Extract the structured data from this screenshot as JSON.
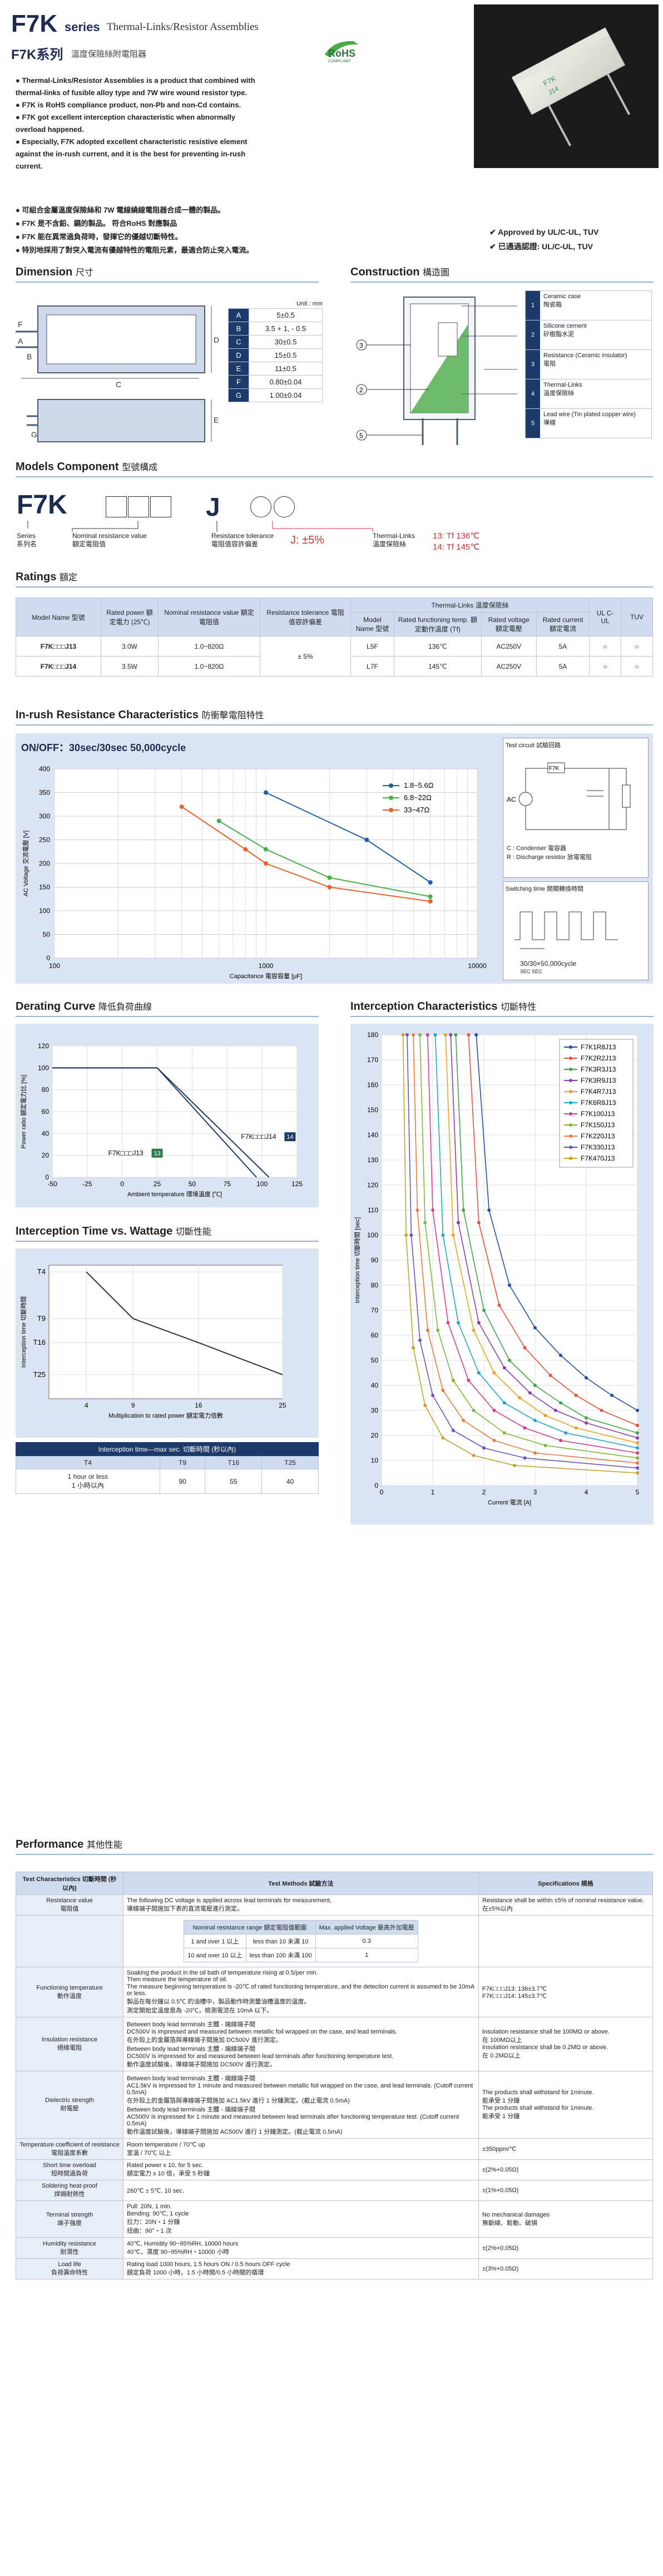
{
  "header": {
    "model": "F7K",
    "series_word": "series",
    "series_name": "Thermal-Links/Resistor Assemblies",
    "zh_title": "F7K系列",
    "zh_subtitle": "溫度保險絲附電阻器",
    "rohs": "RoHS",
    "rohs_sub": "COMPLIANT"
  },
  "intro": {
    "en_bullets": [
      "Thermal-Links/Resistor Assemblies is a product that combined with thermal-links of fusible alloy type and 7W wire wound resistor type.",
      "F7K is RoHS compliance product, non-Pb and non-Cd contains.",
      "F7K got excellent interception characteristic when abnormally overload happened.",
      "Especially, F7K adopted excellent characteristic resistive element against the in-rush current, and it is the best for preventing in-rush current."
    ],
    "zh_bullets": [
      "可組合金屬溫度保險絲和 7W 電線繞線電阻器合成一體的製品。",
      "F7K 是不含鉛、鎘的製品。 符合RoHS 對應製品",
      "F7K 能在異常過負荷時，發揮它的優越切斷特性。",
      "特別地採用了對突入電流有優越特性的電阻元素，最適合防止突入電流。"
    ],
    "approvals": [
      "Approved by UL/C-UL, TUV",
      "已通過認證: UL/C-UL, TUV"
    ]
  },
  "dimension": {
    "title": "Dimension",
    "title_zh": "尺寸",
    "unit": "Unit : mm",
    "rows": [
      {
        "k": "A",
        "v": "5±0.5"
      },
      {
        "k": "B",
        "v": "3.5 + 1, - 0.5"
      },
      {
        "k": "C",
        "v": "30±0.5"
      },
      {
        "k": "D",
        "v": "15±0.5"
      },
      {
        "k": "E",
        "v": "11±0.5"
      },
      {
        "k": "F",
        "v": "0.80±0.04"
      },
      {
        "k": "G",
        "v": "1.00±0.04"
      }
    ],
    "letters": [
      "A",
      "B",
      "C",
      "D",
      "E",
      "F",
      "G"
    ]
  },
  "construction": {
    "title": "Construction",
    "title_zh": "構造圖",
    "rows": [
      {
        "n": "1",
        "en": "Ceramic case",
        "zh": "陶瓷箱"
      },
      {
        "n": "2",
        "en": "Silicone cement",
        "zh": "矽樹脂水泥"
      },
      {
        "n": "3",
        "en": "Resistance (Ceramic insulator)",
        "zh": "電阻"
      },
      {
        "n": "4",
        "en": "Thermal-Links",
        "zh": "溫度保險絲"
      },
      {
        "n": "5",
        "en": "Lead wire (Tin plated copper wire)",
        "zh": "導線"
      }
    ]
  },
  "models": {
    "title": "Models Component",
    "title_zh": "型號構成",
    "prefix": "F7K",
    "letter": "J",
    "series_label": "Series",
    "series_zh": "系列名",
    "nominal_label": "Nominal resistance value",
    "nominal_zh": "額定電阻值",
    "tol_label": "Resistance tolerance",
    "tol_zh": "電阻值容許偏差",
    "tol_value": "J: ±5%",
    "tl_label": "Thermal-Links",
    "tl_zh": "溫度保險絲",
    "tl_13": "13: Tf  136℃",
    "tl_14": "14: Tf  145℃"
  },
  "ratings": {
    "title": "Ratings",
    "title_zh": "額定",
    "headers": {
      "model": "Model Name 型號",
      "power": "Rated power 額定電力 (25℃)",
      "resist": "Nominal resistance value 額定電阻值",
      "tol": "Resistance tolerance 電阻值容許偏差",
      "tl_group": "Thermal-Links 溫度保險絲",
      "tl_model": "Model Name 型號",
      "tl_temp": "Rated functioning temp. 額定動作溫度 (Tf)",
      "tl_volt": "Rated voltage 額定電壓",
      "tl_curr": "Rated current 額定電流",
      "ul": "UL C-UL",
      "tuv": "TUV"
    },
    "rows": [
      {
        "model": "F7K□□□J13",
        "power": "3.0W",
        "resist": "1.0~820Ω",
        "tol": "± 5%",
        "tl_model": "L5F",
        "temp": "136℃",
        "volt": "AC250V",
        "curr": "5A",
        "ul": "○",
        "tuv": "○"
      },
      {
        "model": "F7K□□□J14",
        "power": "3.5W",
        "resist": "1.0~820Ω",
        "tol": "± 5%",
        "tl_model": "L7F",
        "temp": "145℃",
        "volt": "AC250V",
        "curr": "5A",
        "ul": "○",
        "tuv": "○"
      }
    ]
  },
  "inrush": {
    "title": "In-rush Resistance Characteristics",
    "title_zh": "防衝擊電阻特性",
    "subtitle": "ON/OFF：30sec/30sec  50,000cycle",
    "test_circuit": "Test circuit  試驗回路",
    "c_note": "C : Condenser 電容器",
    "r_note": "R : Discharge resistor 放電電阻",
    "switch_title": "Switching time  開關轉換時間",
    "switch_cycle": "30/30×50,000cycle",
    "switch_unit": "SEC SEC",
    "ac_label": "AC",
    "f7k_label": "F7K"
  },
  "derating": {
    "title": "Derating Curve",
    "title_zh": "降低負荷曲線"
  },
  "interception": {
    "title": "Interception Characteristics",
    "title_zh": "切斷特性"
  },
  "itime": {
    "title": "Interception Time vs. Wattage",
    "title_zh": "切斷性能",
    "table_title": "Interception time—max sec. 切斷時間 (秒以內)",
    "headers": [
      "T4",
      "T9",
      "T16",
      "T25"
    ],
    "cells": [
      "1 hour or less\n1 小時以內",
      "90",
      "55",
      "40"
    ]
  },
  "performance": {
    "title": "Performance",
    "title_zh": "其他性能",
    "headers": [
      "Test Characteristics 切斷時間 (秒以內)",
      "Test Methods 試驗方法",
      "Specifications 規格"
    ],
    "rows": [
      {
        "c": "Resistance value\n電阻值",
        "m": "The following DC voltage is applied across lead terminals for measurement.\n導線端子間施加下表的直流電壓進行測定。",
        "s": "Resistance shall be within ±5% of nominal resistance value.\n在±5%以內"
      },
      {
        "c": "Functioning temperature\n動作溫度",
        "m": "Soaking the product in the oil bath of temperature rising at 0.5/per min.\nThen measure the temperature of oil.\nThe measure beginning temperature is -20℃ of rated functioning temperature, and the detection current is assumed to be 10mA or less.\n製品在每分鐘以 0.5℃ 的油槽中，製品動作時測量油槽溫度的溫度。\n測定開始定溫度是為 -20℃，檢測電流在 10mA 以下。",
        "s": "F7K□□□J13: 136±3.7℃\nF7K□□□J14: 145±3.7℃"
      },
      {
        "c": "Insulation resistance\n絕緣電阻",
        "m": "Between body lead terminals 主體 - 端線端子間\nDC500V is impressed and measured between metallic foil wrapped on the case, and lead terminals.\n在外殼上的金屬箔與導線端子間施加 DC500V 進行測定。\nBetween body lead terminals 主體 - 端線端子間\nDC500V is impressed for and measured between lead terminals after functioning temperature test.\n動作溫度試驗後，導線端子間施加 DC500V 進行測定。",
        "s": "Insulation resistance shall be 100MΩ or above.\n在 100MΩ以上\nInsulation resistance shall be 0.2MΩ or above.\n在 0.2MΩ以上"
      },
      {
        "c": "Dielectric strength\n耐電壓",
        "m": "Between body lead terminals 主體 - 端線端子間\nAC1.5kV is impressed for 1 minute and measured between metallic foil wrapped on the case, and lead terminals. (Cutoff current 0.5mA)\n在外殼上的金屬箔與導線端子間施加 AC1.5kV 進行 1 分鐘測定。(截止電流 0.5mA)\nBetween body lead terminals 主體 - 端線端子間\nAC500V is impressed for 1 minute and measured between lead terminals after functioning temperature test. (Cutoff current 0.5mA)\n動作溫度試驗後，導線端子間施加 AC500V 進行 1 分鐘測定。(截止電流 0.5mA)",
        "s": "The products shall withstand for 1minute.\n能承受 1 分鐘\nThe products shall withstand for 1minute.\n能承受 1 分鐘"
      },
      {
        "c": "Temperature coefficient of resistance\n電阻溫度系數",
        "m": "Room temperature / 70℃ up\n室溫 / 70℃ 以上",
        "s": "±350ppm/℃"
      },
      {
        "c": "Short time overload\n短時間過負荷",
        "m": "Rated power x 10, for 5 sec.\n額定電力 x 10 倍，承受 5 秒鐘",
        "s": "±(2%+0.05Ω)"
      },
      {
        "c": "Soldering heat-proof\n焊錫耐熱性",
        "m": "260℃ ± 5℃, 10 sec.",
        "s": "±(1%+0.05Ω)"
      },
      {
        "c": "Terminal strength\n端子強度",
        "m": "Pull: 20N, 1 min.\nBending: 90℃, 1 cycle\n拉力：20N・1 分鐘\n扭曲：90°・1 次",
        "s": "No mechanical damages\n無斷線、鬆動、破損"
      },
      {
        "c": "Humidity resistance\n耐濕性",
        "m": "40℃, Humidity 90~95%RH, 10000 hours\n40℃，濕度 90~95%RH・10000 小時",
        "s": "±(2%+0.05Ω)"
      },
      {
        "c": "Load life\n負荷壽命特性",
        "m": "Rating load 1000 hours, 1.5 hours ON / 0.5 hours OFF cycle\n額定負荷 1000 小時，1.5 小時開/0.5 小時關的循環",
        "s": "±(3%+0.05Ω)"
      }
    ],
    "voltage_table": {
      "h1": "Nominal resistance range 額定電阻值範圍",
      "h2": "Max. applied Voltage 最高外加電壓",
      "r1a": "1 and over 1 以上",
      "r1b": "less than 10 未滿 10",
      "r1c": "0.3",
      "r2a": "10 and over 10 以上",
      "r2b": "less than 100 未滿 100",
      "r2c": "1"
    }
  },
  "chart_data": [
    {
      "type": "line",
      "title": "ON/OFF：30sec/30sec  50,000cycle",
      "xlabel": "Capacitance 電容容量 [μF]",
      "ylabel": "AC Voltage 交流電壓 [V]",
      "xscale": "log",
      "xlim": [
        100,
        10000
      ],
      "ylim": [
        0,
        400
      ],
      "yticks": [
        0,
        50,
        100,
        150,
        200,
        250,
        300,
        350,
        400
      ],
      "xticks": [
        100,
        1000,
        10000
      ],
      "series": [
        {
          "name": "1.8~5.6Ω",
          "color": "#1f5ea8",
          "x": [
            1000,
            3000,
            6000
          ],
          "y": [
            350,
            250,
            160
          ]
        },
        {
          "name": "6.8~22Ω",
          "color": "#45b04a",
          "x": [
            600,
            1000,
            2000,
            6000
          ],
          "y": [
            290,
            230,
            170,
            130
          ]
        },
        {
          "name": "33~47Ω",
          "color": "#e8632a",
          "x": [
            400,
            800,
            1000,
            2000,
            6000
          ],
          "y": [
            320,
            230,
            200,
            150,
            120
          ]
        }
      ],
      "legend": "top-right",
      "grid": true
    },
    {
      "type": "line",
      "xlabel": "Ambient temperature 環境溫度 [℃]",
      "ylabel": "Power ratio 額定電力比 [%]",
      "xlim": [
        -50,
        125
      ],
      "ylim": [
        0,
        120
      ],
      "xticks": [
        -50,
        -25,
        0,
        25,
        50,
        75,
        100,
        125
      ],
      "yticks": [
        0,
        20,
        40,
        60,
        80,
        100,
        120
      ],
      "series": [
        {
          "name": "F7K□□□J13",
          "tag": "13",
          "x": [
            -50,
            25,
            96
          ],
          "y": [
            100,
            100,
            0
          ]
        },
        {
          "name": "F7K□□□J14",
          "tag": "14",
          "x": [
            -50,
            25,
            105
          ],
          "y": [
            100,
            100,
            0
          ]
        }
      ],
      "grid": true
    },
    {
      "type": "line",
      "xlabel": "Current 電流 [A]",
      "ylabel": "Interception time 切斷時間 [sec]",
      "xlim": [
        0,
        5
      ],
      "ylim": [
        0,
        180
      ],
      "xticks": [
        0,
        1,
        2,
        3,
        4,
        5
      ],
      "yticks": [
        0,
        10,
        20,
        30,
        40,
        50,
        60,
        70,
        80,
        90,
        100,
        110,
        120,
        130,
        140,
        150,
        160,
        170,
        180
      ],
      "legend": "top-right",
      "series": [
        {
          "name": "F7K1R8J13",
          "color": "#1f4fa8",
          "x": [
            1.85,
            2.1,
            2.5,
            3.0,
            3.5,
            4.0,
            4.5,
            5.0
          ],
          "y": [
            180,
            110,
            80,
            63,
            52,
            43,
            36,
            30
          ]
        },
        {
          "name": "F7K2R2J13",
          "color": "#e8503a",
          "x": [
            1.7,
            1.9,
            2.3,
            2.8,
            3.3,
            3.8,
            4.3,
            5.0
          ],
          "y": [
            180,
            105,
            72,
            55,
            44,
            36,
            30,
            24
          ]
        },
        {
          "name": "F7K3R3J13",
          "color": "#39a845",
          "x": [
            1.45,
            1.6,
            2.0,
            2.5,
            3.0,
            3.5,
            4.0,
            5.0
          ],
          "y": [
            180,
            110,
            70,
            50,
            40,
            33,
            27,
            21
          ]
        },
        {
          "name": "F7K3R9J13",
          "color": "#8a3bb0",
          "x": [
            1.35,
            1.5,
            1.9,
            2.4,
            2.9,
            3.4,
            4.0,
            5.0
          ],
          "y": [
            180,
            105,
            65,
            47,
            37,
            30,
            25,
            19
          ]
        },
        {
          "name": "F7K4R7J13",
          "color": "#f0a020",
          "x": [
            1.25,
            1.4,
            1.8,
            2.2,
            2.7,
            3.2,
            3.8,
            5.0
          ],
          "y": [
            180,
            100,
            62,
            45,
            35,
            28,
            23,
            17
          ]
        },
        {
          "name": "F7K6R8J13",
          "color": "#1fa5c9",
          "x": [
            1.05,
            1.2,
            1.5,
            1.9,
            2.4,
            3.0,
            3.6,
            5.0
          ],
          "y": [
            180,
            100,
            65,
            45,
            33,
            26,
            21,
            15
          ]
        },
        {
          "name": "F7K100J13",
          "color": "#d23d8c",
          "x": [
            0.9,
            1.0,
            1.3,
            1.7,
            2.2,
            2.8,
            3.5,
            5.0
          ],
          "y": [
            180,
            110,
            65,
            42,
            30,
            23,
            18,
            13
          ]
        },
        {
          "name": "F7K150J13",
          "color": "#7db83a",
          "x": [
            0.75,
            0.85,
            1.1,
            1.4,
            1.8,
            2.4,
            3.2,
            5.0
          ],
          "y": [
            180,
            105,
            62,
            42,
            30,
            21,
            16,
            11
          ]
        },
        {
          "name": "F7K220J13",
          "color": "#e87a3a",
          "x": [
            0.62,
            0.7,
            0.9,
            1.2,
            1.6,
            2.2,
            3.0,
            5.0
          ],
          "y": [
            180,
            110,
            62,
            38,
            26,
            18,
            13,
            9
          ]
        },
        {
          "name": "F7K330J13",
          "color": "#6a4fc0",
          "x": [
            0.5,
            0.58,
            0.75,
            1.0,
            1.4,
            2.0,
            2.8,
            5.0
          ],
          "y": [
            180,
            100,
            58,
            36,
            22,
            15,
            11,
            7
          ]
        },
        {
          "name": "F7K470J13",
          "color": "#c8a030",
          "x": [
            0.42,
            0.48,
            0.62,
            0.85,
            1.2,
            1.8,
            2.6,
            5.0
          ],
          "y": [
            180,
            100,
            55,
            32,
            19,
            12,
            8,
            5
          ]
        }
      ],
      "grid": true
    },
    {
      "type": "line",
      "xlabel": "Multiplication to rated power 額定電力倍數",
      "ylabel": "Interception time 切斷時間",
      "xlim": [
        0,
        25
      ],
      "xticks": [
        4,
        9,
        16,
        25
      ],
      "yticks_labels": [
        "T4",
        "T9",
        "T16",
        "T25"
      ],
      "series": [
        {
          "name": "interception",
          "x": [
            4,
            9,
            16,
            25
          ],
          "y": [
            "T4",
            "T9",
            "T16",
            "T25"
          ]
        }
      ]
    }
  ]
}
